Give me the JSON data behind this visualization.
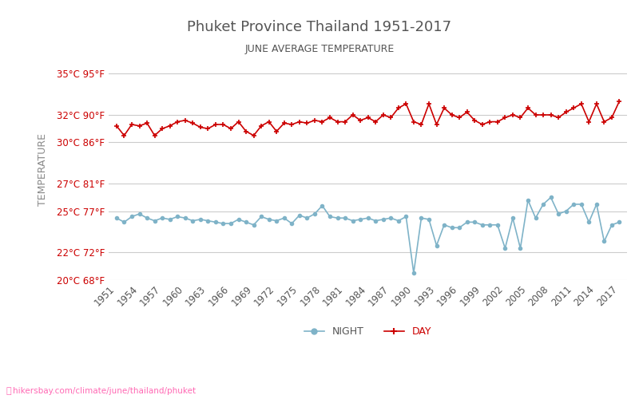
{
  "title": "Phuket Province Thailand 1951-2017",
  "subtitle": "JUNE AVERAGE TEMPERATURE",
  "ylabel": "TEMPERATURE",
  "background_color": "#ffffff",
  "grid_color": "#cccccc",
  "ylim_c": [
    20,
    36
  ],
  "yticks_c": [
    20,
    22,
    25,
    27,
    30,
    32,
    35
  ],
  "ytick_labels": [
    "20°C 68°F",
    "22°C 72°F",
    "25°C 77°F",
    "27°C 81°F",
    "30°C 86°F",
    "32°C 90°F",
    "35°C 95°F"
  ],
  "years": [
    1951,
    1952,
    1953,
    1954,
    1955,
    1956,
    1957,
    1958,
    1959,
    1960,
    1961,
    1962,
    1963,
    1964,
    1965,
    1966,
    1967,
    1968,
    1969,
    1970,
    1971,
    1972,
    1973,
    1974,
    1975,
    1976,
    1977,
    1978,
    1979,
    1980,
    1981,
    1982,
    1983,
    1984,
    1985,
    1986,
    1987,
    1988,
    1989,
    1990,
    1991,
    1992,
    1993,
    1994,
    1995,
    1996,
    1997,
    1998,
    1999,
    2000,
    2001,
    2002,
    2003,
    2004,
    2005,
    2006,
    2007,
    2008,
    2009,
    2010,
    2011,
    2012,
    2013,
    2014,
    2015,
    2016,
    2017
  ],
  "day_temps": [
    31.2,
    30.5,
    31.3,
    31.2,
    31.4,
    30.5,
    31.0,
    31.2,
    31.5,
    31.6,
    31.4,
    31.1,
    31.0,
    31.3,
    31.3,
    31.0,
    31.5,
    30.8,
    30.5,
    31.2,
    31.5,
    30.8,
    31.4,
    31.3,
    31.5,
    31.4,
    31.6,
    31.5,
    31.8,
    31.5,
    31.5,
    32.0,
    31.6,
    31.8,
    31.5,
    32.0,
    31.8,
    32.5,
    32.8,
    31.5,
    31.3,
    32.8,
    31.3,
    32.5,
    32.0,
    31.8,
    32.2,
    31.6,
    31.3,
    31.5,
    31.5,
    31.8,
    32.0,
    31.8,
    32.5,
    32.0,
    32.0,
    32.0,
    31.8,
    32.2,
    32.5,
    32.8,
    31.5,
    32.8,
    31.5,
    31.8,
    33.0
  ],
  "night_temps": [
    24.5,
    24.2,
    24.6,
    24.8,
    24.5,
    24.3,
    24.5,
    24.4,
    24.6,
    24.5,
    24.3,
    24.4,
    24.3,
    24.2,
    24.1,
    24.1,
    24.4,
    24.2,
    24.0,
    24.6,
    24.4,
    24.3,
    24.5,
    24.1,
    24.7,
    24.5,
    24.8,
    25.4,
    24.6,
    24.5,
    24.5,
    24.3,
    24.4,
    24.5,
    24.3,
    24.4,
    24.5,
    24.3,
    24.6,
    20.5,
    24.5,
    24.4,
    22.5,
    24.0,
    23.8,
    23.8,
    24.2,
    24.2,
    24.0,
    24.0,
    24.0,
    22.3,
    24.5,
    22.3,
    25.8,
    24.5,
    25.5,
    26.0,
    24.8,
    25.0,
    25.5,
    25.5,
    24.2,
    25.5,
    22.8,
    24.0,
    24.2
  ],
  "day_color": "#cc0000",
  "night_color": "#7fb3c8",
  "day_marker": "P",
  "night_marker": "o",
  "marker_size": 3,
  "line_width": 1.2,
  "xtick_years": [
    1951,
    1954,
    1957,
    1960,
    1963,
    1966,
    1969,
    1972,
    1975,
    1978,
    1981,
    1984,
    1987,
    1990,
    1993,
    1996,
    1999,
    2002,
    2005,
    2008,
    2011,
    2014,
    2017
  ],
  "legend_night": "NIGHT",
  "legend_day": "DAY",
  "watermark": "hikersbay.com/climate/june/thailand/phuket",
  "title_color": "#555555",
  "subtitle_color": "#555555",
  "ytick_color": "#cc0000"
}
